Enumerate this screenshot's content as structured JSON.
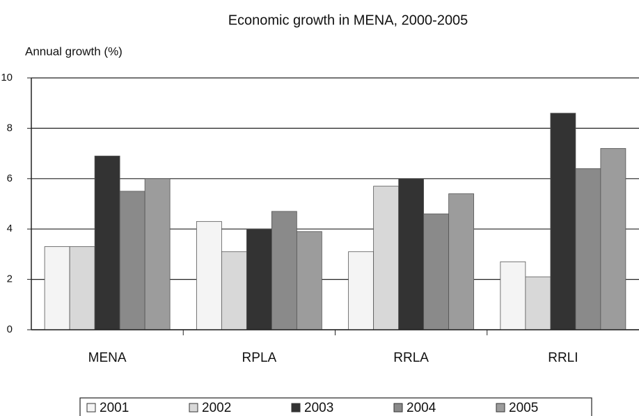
{
  "chart_data": {
    "type": "bar",
    "title": "Economic growth in MENA, 2000-2005",
    "y_label": "Annual growth (%)",
    "categories": [
      "MENA",
      "RPLA",
      "RRLA",
      "RRLI"
    ],
    "series": [
      {
        "name": "2001",
        "color": "#f4f4f4",
        "values": [
          3.3,
          4.3,
          3.1,
          2.7
        ]
      },
      {
        "name": "2002",
        "color": "#d8d8d8",
        "values": [
          3.3,
          3.1,
          5.7,
          2.1
        ]
      },
      {
        "name": "2003",
        "color": "#333333",
        "values": [
          6.9,
          4.0,
          6.0,
          8.6
        ]
      },
      {
        "name": "2004",
        "color": "#8a8a8a",
        "values": [
          5.5,
          4.7,
          4.6,
          6.4
        ]
      },
      {
        "name": "2005",
        "color": "#9c9c9c",
        "values": [
          6.0,
          3.9,
          5.4,
          7.2
        ]
      }
    ],
    "ylim": [
      0,
      10
    ],
    "yticks": [
      0,
      2,
      4,
      6,
      8,
      10
    ],
    "grid": true,
    "legend": "bottom"
  }
}
